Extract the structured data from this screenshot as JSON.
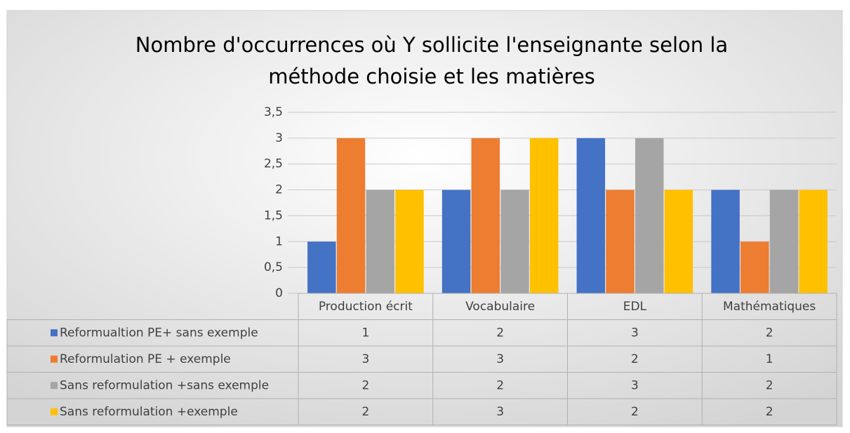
{
  "chart_data": {
    "type": "bar",
    "title": [
      "Nombre d'occurrences où Y sollicite l'enseignante selon la",
      "méthode choisie et les matières"
    ],
    "categories": [
      "Production écrit",
      "Vocabulaire",
      "EDL",
      "Mathématiques"
    ],
    "series": [
      {
        "name": "Reformualtion PE+ sans exemple",
        "color": "#4472c4",
        "values": [
          1,
          2,
          3,
          2
        ]
      },
      {
        "name": "Reformulation PE +  exemple",
        "color": "#ed7d31",
        "values": [
          3,
          3,
          2,
          1
        ]
      },
      {
        "name": "Sans reformulation +sans exemple",
        "color": "#a5a5a5",
        "values": [
          2,
          2,
          3,
          2
        ]
      },
      {
        "name": "Sans reformulation +exemple",
        "color": "#ffc000",
        "values": [
          2,
          3,
          2,
          2
        ]
      }
    ],
    "ylim": [
      0,
      3.5
    ],
    "yticks": [
      0,
      {
        "value": 0.5,
        "label": "0,5"
      },
      1,
      {
        "value": 1.5,
        "label": "1,5"
      },
      2,
      {
        "value": 2.5,
        "label": "2,5"
      },
      3,
      {
        "value": 3.5,
        "label": "3,5"
      }
    ],
    "grid": true
  }
}
